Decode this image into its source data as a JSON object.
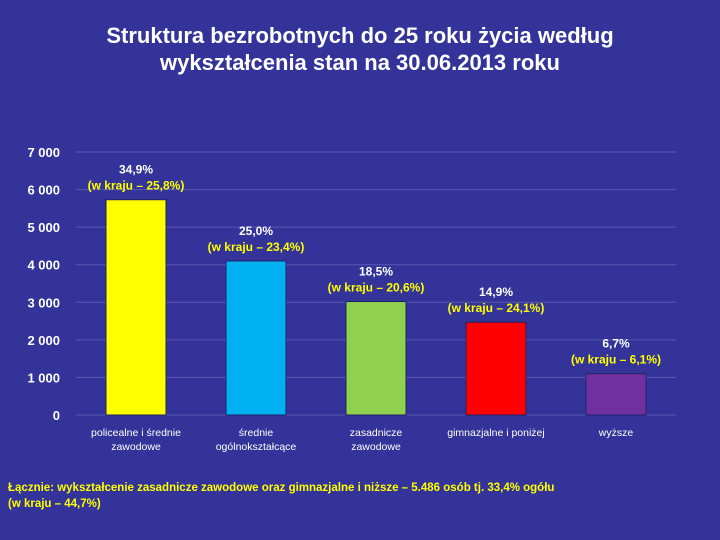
{
  "title_line1": "Struktura bezrobotnych do 25 roku życia według",
  "title_line2": "wykształcenia stan na 30.06.2013 roku",
  "chart_data": {
    "type": "bar",
    "title": "Struktura bezrobotnych do 25 roku życia według wykształcenia stan na 30.06.2013 roku",
    "categories": [
      [
        "policealne i średnie",
        "zawodowe"
      ],
      [
        "średnie",
        "ogólnokształcące"
      ],
      [
        "zasadnicze",
        "zawodowe"
      ],
      [
        "gimnazjalne i poniżej"
      ],
      [
        "wyższe"
      ]
    ],
    "values": [
      5730,
      4100,
      3020,
      2470,
      1100
    ],
    "colors": [
      "#ffff00",
      "#00b0f0",
      "#92d050",
      "#ff0000",
      "#7030a0"
    ],
    "label_share": [
      "34,9%",
      "25,0%",
      "18,5%",
      "14,9%",
      "6,7%"
    ],
    "label_country": [
      "(w kraju – 25,8%)",
      "(w kraju – 23,4%)",
      "(w kraju – 20,6%)",
      "(w kraju – 24,1%)",
      "(w kraju – 6,1%)"
    ],
    "y_ticks": [
      0,
      1000,
      2000,
      3000,
      4000,
      5000,
      6000,
      7000
    ],
    "y_tick_labels": [
      "0",
      "1 000",
      "2 000",
      "3 000",
      "4 000",
      "5 000",
      "6 000",
      "7 000"
    ],
    "ylim": [
      0,
      7000
    ],
    "grid": true,
    "legend": "none"
  },
  "footer_line1": "Łącznie: wykształcenie zasadnicze zawodowe oraz gimnazjalne i niższe – 5.486 osób tj.  33,4% ogółu",
  "footer_line2": "(w kraju – 44,7%)",
  "colors": {
    "background": "#333399",
    "text": "#ffffff",
    "accent_label": "#ffff00"
  }
}
